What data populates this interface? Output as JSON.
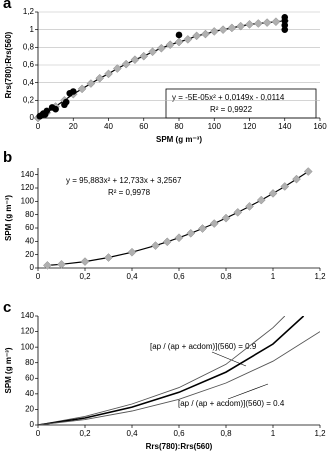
{
  "chart_data": [
    {
      "type": "scatter",
      "panel_label": "a",
      "xlabel": "SPM (g m⁻³)",
      "ylabel": "Rrs(780):Rrs(560)",
      "equation": "y = -5E-05x² + 0,0149x - 0,0114",
      "r2": "R² = 0,9922",
      "grid": true,
      "xlim": [
        0,
        160
      ],
      "xticks": [
        0,
        20,
        40,
        60,
        80,
        100,
        120,
        140,
        160
      ],
      "ylim": [
        0,
        1.2
      ],
      "yticks": [
        0,
        {
          "value": 0.2,
          "label": "0,2"
        },
        {
          "value": 0.4,
          "label": "0,4"
        },
        {
          "value": 0.6,
          "label": "0,6"
        },
        {
          "value": 0.8,
          "label": "0,8"
        },
        1,
        {
          "value": 1.2,
          "label": "1,2"
        }
      ],
      "series": [
        {
          "marker": "diamond",
          "line": true,
          "color": "#b0b0b0",
          "x": [
            0,
            5,
            10,
            15,
            20,
            25,
            30,
            35,
            40,
            45,
            50,
            55,
            60,
            65,
            70,
            75,
            80,
            85,
            90,
            95,
            100,
            105,
            110,
            115,
            120,
            125,
            130,
            135,
            140
          ],
          "values": [
            0,
            0.06,
            0.13,
            0.2,
            0.27,
            0.33,
            0.39,
            0.45,
            0.5,
            0.56,
            0.61,
            0.66,
            0.7,
            0.75,
            0.79,
            0.83,
            0.86,
            0.89,
            0.93,
            0.95,
            0.98,
            1.0,
            1.02,
            1.04,
            1.06,
            1.07,
            1.08,
            1.09,
            1.1
          ]
        },
        {
          "marker": "circle",
          "line": false,
          "color": "#000000",
          "x": [
            1,
            2,
            3,
            4,
            5,
            8,
            10,
            15,
            16,
            18,
            20,
            80,
            140,
            140,
            140,
            140
          ],
          "values": [
            0.02,
            0.03,
            0.05,
            0.04,
            0.08,
            0.12,
            0.1,
            0.15,
            0.18,
            0.28,
            0.3,
            0.94,
            1.0,
            1.05,
            1.1,
            1.14
          ]
        }
      ]
    },
    {
      "type": "scatter",
      "panel_label": "b",
      "ylabel": "SPM (g m⁻³)",
      "equation": "y = 95,883x² + 12,733x + 3,2567",
      "r2": "R² = 0,9978",
      "grid": false,
      "xlim": [
        0,
        1.2
      ],
      "xticks": [
        0,
        {
          "value": 0.2,
          "label": "0,2"
        },
        {
          "value": 0.4,
          "label": "0,4"
        },
        {
          "value": 0.6,
          "label": "0,6"
        },
        {
          "value": 0.8,
          "label": "0,8"
        },
        1,
        {
          "value": 1.2,
          "label": "1,2"
        }
      ],
      "ylim": [
        0,
        150
      ],
      "yticks": [
        0,
        20,
        40,
        60,
        80,
        100,
        120,
        140
      ],
      "series": [
        {
          "marker": "diamond",
          "line": true,
          "color": "#b0b0b0",
          "x": [
            0.04,
            0.1,
            0.2,
            0.3,
            0.4,
            0.5,
            0.55,
            0.6,
            0.65,
            0.7,
            0.75,
            0.8,
            0.85,
            0.9,
            0.95,
            1.0,
            1.05,
            1.1,
            1.15
          ],
          "values": [
            3.9,
            5.5,
            9.6,
            15.7,
            23.7,
            33.6,
            39.3,
            45.4,
            52.0,
            59.2,
            66.7,
            74.8,
            83.4,
            92.4,
            101.9,
            111.9,
            122.3,
            133.3,
            144.7
          ]
        }
      ]
    },
    {
      "type": "line",
      "panel_label": "c",
      "xlabel": "Rrs(780):Rrs(560)",
      "ylabel": "SPM (g m⁻³)",
      "annotations": [
        "[ap / (ap + acdom)](560) = 0.9",
        "[ap / (ap + acdom)](560) = 0.4"
      ],
      "grid": false,
      "xlim": [
        0,
        1.2
      ],
      "xticks": [
        0,
        {
          "value": 0.2,
          "label": "0,2"
        },
        {
          "value": 0.4,
          "label": "0,4"
        },
        {
          "value": 0.6,
          "label": "0,6"
        },
        {
          "value": 0.8,
          "label": "0,8"
        },
        1,
        {
          "value": 1.2,
          "label": "1,2"
        }
      ],
      "ylim": [
        0,
        140
      ],
      "yticks": [
        0,
        20,
        40,
        60,
        80,
        100,
        120,
        140
      ],
      "series": [
        {
          "line": true,
          "color": "#555555",
          "x": [
            0,
            0.2,
            0.4,
            0.6,
            0.8,
            1.0,
            1.05
          ],
          "values": [
            0,
            11,
            27,
            48,
            78,
            125,
            140
          ]
        },
        {
          "line": true,
          "color": "#000000",
          "x": [
            0,
            0.2,
            0.4,
            0.6,
            0.8,
            1.0,
            1.13
          ],
          "values": [
            0,
            9,
            23,
            42,
            68,
            104,
            140
          ]
        },
        {
          "line": true,
          "color": "#555555",
          "x": [
            0,
            0.2,
            0.4,
            0.6,
            0.8,
            1.0,
            1.2
          ],
          "values": [
            0,
            7,
            18,
            33,
            54,
            82,
            120
          ]
        }
      ]
    }
  ]
}
